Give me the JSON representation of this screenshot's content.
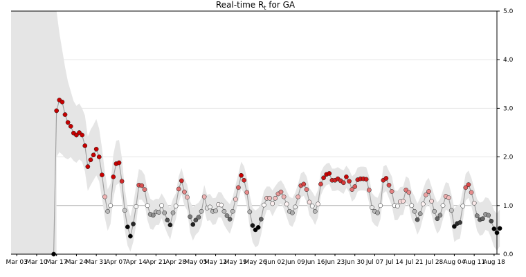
{
  "chart_data": {
    "type": "scatter",
    "title_main": "Real-time R",
    "title_sub": "t",
    "title_rest": " for GA",
    "ylim": [
      0,
      5
    ],
    "y_ticks": [
      "0.0",
      "1.0",
      "2.0",
      "3.0",
      "4.0",
      "5.0"
    ],
    "reference_line": 1.0,
    "x_start": "2020-03-01",
    "x_end": "2020-08-19",
    "x_ticks": [
      {
        "date": "2020-03-03",
        "label": "Mar 03"
      },
      {
        "date": "2020-03-10",
        "label": "Mar 10"
      },
      {
        "date": "2020-03-17",
        "label": "Mar 17"
      },
      {
        "date": "2020-03-24",
        "label": "Mar 24"
      },
      {
        "date": "2020-03-31",
        "label": "Mar 31"
      },
      {
        "date": "2020-04-07",
        "label": "Apr 07"
      },
      {
        "date": "2020-04-14",
        "label": "Apr 14"
      },
      {
        "date": "2020-04-21",
        "label": "Apr 21"
      },
      {
        "date": "2020-04-28",
        "label": "Apr 28"
      },
      {
        "date": "2020-05-05",
        "label": "May 05"
      },
      {
        "date": "2020-05-12",
        "label": "May 12"
      },
      {
        "date": "2020-05-19",
        "label": "May 19"
      },
      {
        "date": "2020-05-26",
        "label": "May 26"
      },
      {
        "date": "2020-06-02",
        "label": "Jun 02"
      },
      {
        "date": "2020-06-09",
        "label": "Jun 09"
      },
      {
        "date": "2020-06-16",
        "label": "Jun 16"
      },
      {
        "date": "2020-06-23",
        "label": "Jun 23"
      },
      {
        "date": "2020-06-30",
        "label": "Jun 30"
      },
      {
        "date": "2020-07-07",
        "label": "Jul 07"
      },
      {
        "date": "2020-07-14",
        "label": "Jul 14"
      },
      {
        "date": "2020-07-21",
        "label": "Jul 21"
      },
      {
        "date": "2020-07-28",
        "label": "Jul 28"
      },
      {
        "date": "2020-08-04",
        "label": "Aug 04"
      },
      {
        "date": "2020-08-11",
        "label": "Aug 11"
      },
      {
        "date": "2020-08-18",
        "label": "Aug 18"
      }
    ],
    "series_start": "2020-03-16",
    "rt": [
      0.0,
      2.95,
      3.17,
      3.13,
      2.87,
      2.71,
      2.63,
      2.49,
      2.45,
      2.5,
      2.45,
      2.23,
      1.8,
      1.94,
      2.04,
      2.16,
      2.0,
      1.63,
      1.18,
      0.88,
      1.0,
      1.59,
      1.86,
      1.88,
      1.5,
      0.9,
      0.56,
      0.37,
      0.62,
      0.98,
      1.42,
      1.41,
      1.33,
      1.0,
      0.82,
      0.8,
      0.87,
      0.86,
      1.0,
      0.85,
      0.7,
      0.6,
      0.85,
      0.99,
      1.34,
      1.51,
      1.28,
      1.17,
      0.77,
      0.61,
      0.7,
      0.76,
      0.88,
      1.18,
      0.95,
      0.97,
      0.88,
      0.89,
      1.02,
      1.01,
      0.88,
      0.79,
      0.72,
      0.88,
      1.13,
      1.37,
      1.62,
      1.52,
      1.27,
      0.87,
      0.59,
      0.5,
      0.55,
      0.72,
      1.01,
      1.15,
      1.15,
      1.04,
      1.15,
      1.24,
      1.28,
      1.18,
      1.03,
      0.88,
      0.85,
      0.97,
      1.18,
      1.41,
      1.44,
      1.33,
      1.07,
      0.99,
      0.88,
      1.03,
      1.44,
      1.57,
      1.64,
      1.66,
      1.52,
      1.52,
      1.55,
      1.51,
      1.47,
      1.59,
      1.5,
      1.33,
      1.39,
      1.53,
      1.55,
      1.55,
      1.54,
      1.32,
      0.96,
      0.88,
      0.85,
      1.0,
      1.52,
      1.56,
      1.42,
      1.29,
      1.0,
      0.99,
      1.08,
      1.09,
      1.32,
      1.27,
      1.0,
      0.88,
      0.71,
      0.83,
      1.03,
      1.22,
      1.29,
      1.09,
      0.88,
      0.73,
      0.8,
      1.0,
      1.19,
      1.16,
      0.9,
      0.57,
      0.63,
      0.65,
      0.99,
      1.37,
      1.43,
      1.27,
      1.05,
      0.79,
      0.71,
      0.73,
      0.82,
      0.8,
      0.68,
      0.52,
      0.44,
      0.53
    ],
    "upper_80": [
      0.0,
      5.0,
      4.55,
      4.2,
      3.85,
      3.55,
      3.35,
      3.15,
      3.05,
      3.1,
      3.0,
      2.85,
      2.42,
      2.56,
      2.66,
      2.78,
      2.58,
      2.18,
      1.7,
      1.33,
      1.45,
      2.05,
      2.33,
      2.35,
      1.98,
      1.36,
      0.98,
      0.78,
      1.03,
      1.4,
      1.75,
      1.72,
      1.63,
      1.32,
      1.14,
      1.1,
      1.14,
      1.13,
      1.25,
      1.15,
      1.03,
      0.95,
      1.14,
      1.25,
      1.6,
      1.77,
      1.55,
      1.43,
      1.09,
      0.96,
      1.02,
      1.06,
      1.15,
      1.42,
      1.22,
      1.24,
      1.15,
      1.16,
      1.28,
      1.27,
      1.16,
      1.09,
      1.03,
      1.17,
      1.42,
      1.65,
      1.9,
      1.81,
      1.57,
      1.21,
      0.95,
      0.9,
      0.94,
      1.05,
      1.3,
      1.39,
      1.39,
      1.31,
      1.4,
      1.48,
      1.52,
      1.43,
      1.3,
      1.18,
      1.15,
      1.26,
      1.44,
      1.66,
      1.7,
      1.6,
      1.36,
      1.28,
      1.18,
      1.32,
      1.68,
      1.8,
      1.86,
      1.88,
      1.76,
      1.76,
      1.79,
      1.75,
      1.72,
      1.82,
      1.74,
      1.6,
      1.65,
      1.78,
      1.8,
      1.8,
      1.79,
      1.6,
      1.26,
      1.19,
      1.16,
      1.3,
      1.8,
      1.84,
      1.71,
      1.6,
      1.32,
      1.3,
      1.38,
      1.39,
      1.6,
      1.56,
      1.3,
      1.19,
      1.04,
      1.16,
      1.33,
      1.5,
      1.57,
      1.39,
      1.2,
      1.06,
      1.13,
      1.31,
      1.48,
      1.46,
      1.23,
      0.94,
      1.0,
      1.03,
      1.32,
      1.65,
      1.72,
      1.57,
      1.36,
      1.13,
      1.06,
      1.08,
      1.17,
      1.15,
      1.05,
      0.9,
      0.83,
      0.92
    ],
    "lower_80": [
      0.0,
      2.0,
      2.1,
      2.05,
      1.98,
      1.95,
      2.0,
      1.92,
      1.88,
      1.95,
      1.9,
      1.7,
      1.3,
      1.42,
      1.52,
      1.62,
      1.5,
      1.15,
      0.75,
      0.48,
      0.62,
      1.15,
      1.42,
      1.46,
      1.1,
      0.5,
      0.18,
      0.05,
      0.25,
      0.6,
      1.12,
      1.12,
      1.04,
      0.7,
      0.52,
      0.5,
      0.6,
      0.6,
      0.74,
      0.57,
      0.42,
      0.3,
      0.55,
      0.72,
      1.06,
      1.24,
      1.0,
      0.9,
      0.45,
      0.28,
      0.4,
      0.46,
      0.6,
      0.92,
      0.68,
      0.7,
      0.6,
      0.62,
      0.76,
      0.75,
      0.6,
      0.5,
      0.42,
      0.6,
      0.85,
      1.1,
      1.35,
      1.25,
      0.98,
      0.55,
      0.25,
      0.14,
      0.18,
      0.4,
      0.72,
      0.91,
      0.91,
      0.78,
      0.9,
      1.0,
      1.04,
      0.94,
      0.77,
      0.6,
      0.56,
      0.69,
      0.92,
      1.17,
      1.2,
      1.08,
      0.8,
      0.72,
      0.6,
      0.75,
      1.2,
      1.34,
      1.42,
      1.44,
      1.3,
      1.3,
      1.32,
      1.28,
      1.24,
      1.36,
      1.27,
      1.08,
      1.14,
      1.29,
      1.31,
      1.31,
      1.3,
      1.06,
      0.68,
      0.6,
      0.56,
      0.72,
      1.25,
      1.3,
      1.15,
      1.0,
      0.7,
      0.7,
      0.8,
      0.81,
      1.05,
      0.99,
      0.72,
      0.6,
      0.4,
      0.52,
      0.75,
      0.96,
      1.03,
      0.81,
      0.58,
      0.42,
      0.5,
      0.72,
      0.92,
      0.88,
      0.6,
      0.25,
      0.3,
      0.32,
      0.68,
      1.1,
      1.16,
      0.99,
      0.76,
      0.48,
      0.38,
      0.4,
      0.5,
      0.47,
      0.33,
      0.15,
      0.07,
      0.16
    ]
  }
}
